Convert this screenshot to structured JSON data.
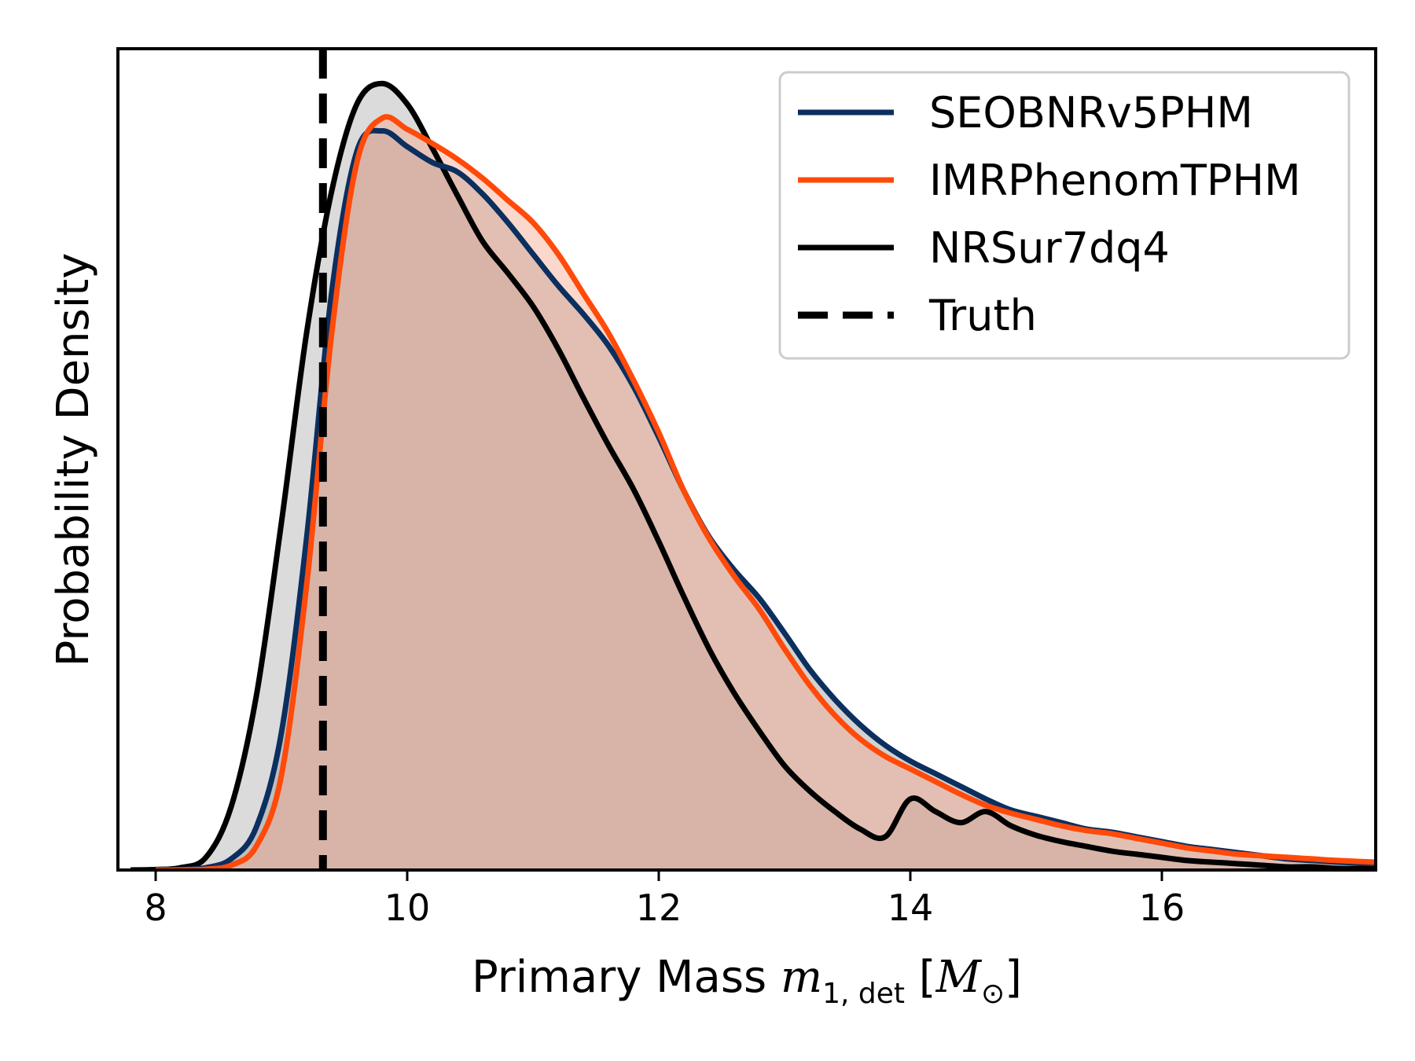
{
  "chart_data": {
    "type": "area",
    "xlabel": "Primary Mass m_{1,det} [M_⊙]",
    "ylabel": "Probability Density",
    "xlim": [
      7.7,
      17.7
    ],
    "ylim": [
      0,
      0.52
    ],
    "xticks": [
      8,
      10,
      12,
      14,
      16
    ],
    "xtick_labels": [
      "8",
      "10",
      "12",
      "14",
      "16"
    ],
    "yticks": [],
    "grid": false,
    "legend": {
      "position": "top-right",
      "entries": [
        "SEOBNRv5PHM",
        "IMRPhenomTPHM",
        "NRSur7dq4",
        "Truth"
      ]
    },
    "truth": {
      "name": "Truth",
      "x": 9.33,
      "color": "#000000",
      "style": "dashed"
    },
    "series": [
      {
        "name": "SEOBNRv5PHM",
        "color": "#0b2f5f",
        "fill": "#9b9b9b",
        "x": [
          8.0,
          8.2,
          8.4,
          8.6,
          8.8,
          9.0,
          9.2,
          9.4,
          9.6,
          9.8,
          10.0,
          10.2,
          10.4,
          10.6,
          10.8,
          11.0,
          11.2,
          11.4,
          11.6,
          11.8,
          12.0,
          12.2,
          12.4,
          12.6,
          12.8,
          13.0,
          13.2,
          13.4,
          13.6,
          13.8,
          14.0,
          14.2,
          14.4,
          14.6,
          14.8,
          15.0,
          15.2,
          15.4,
          15.6,
          15.8,
          16.0,
          16.2,
          16.4,
          16.6,
          16.8,
          17.0,
          17.2,
          17.4,
          17.7
        ],
        "y": [
          0.0,
          0.0003,
          0.0015,
          0.007,
          0.027,
          0.087,
          0.21,
          0.366,
          0.455,
          0.468,
          0.458,
          0.448,
          0.442,
          0.428,
          0.41,
          0.39,
          0.37,
          0.352,
          0.332,
          0.306,
          0.274,
          0.24,
          0.211,
          0.19,
          0.172,
          0.15,
          0.127,
          0.108,
          0.092,
          0.079,
          0.069,
          0.061,
          0.053,
          0.045,
          0.038,
          0.034,
          0.03,
          0.026,
          0.024,
          0.021,
          0.018,
          0.015,
          0.013,
          0.011,
          0.009,
          0.007,
          0.006,
          0.005,
          0.004
        ]
      },
      {
        "name": "IMRPhenomTPHM",
        "color": "#ff4a0a",
        "fill": "#f6a98c",
        "x": [
          8.0,
          8.2,
          8.4,
          8.6,
          8.8,
          9.0,
          9.2,
          9.4,
          9.6,
          9.8,
          10.0,
          10.2,
          10.4,
          10.6,
          10.8,
          11.0,
          11.2,
          11.4,
          11.6,
          11.8,
          12.0,
          12.2,
          12.4,
          12.6,
          12.8,
          13.0,
          13.2,
          13.4,
          13.6,
          13.8,
          14.0,
          14.2,
          14.4,
          14.6,
          14.8,
          15.0,
          15.2,
          15.4,
          15.6,
          15.8,
          16.0,
          16.2,
          16.4,
          16.6,
          16.8,
          17.0,
          17.2,
          17.4,
          17.7
        ],
        "y": [
          0.0,
          0.0,
          0.0005,
          0.003,
          0.015,
          0.06,
          0.18,
          0.34,
          0.448,
          0.476,
          0.469,
          0.46,
          0.45,
          0.438,
          0.424,
          0.41,
          0.39,
          0.365,
          0.34,
          0.31,
          0.277,
          0.24,
          0.21,
          0.186,
          0.165,
          0.14,
          0.117,
          0.098,
          0.083,
          0.072,
          0.064,
          0.056,
          0.048,
          0.041,
          0.036,
          0.032,
          0.028,
          0.025,
          0.023,
          0.02,
          0.017,
          0.014,
          0.012,
          0.01,
          0.009,
          0.008,
          0.007,
          0.006,
          0.005
        ]
      },
      {
        "name": "NRSur7dq4",
        "color": "#000000",
        "fill": "#b0b0b0",
        "x": [
          7.8,
          8.0,
          8.2,
          8.4,
          8.6,
          8.8,
          9.0,
          9.2,
          9.4,
          9.6,
          9.8,
          10.0,
          10.2,
          10.4,
          10.6,
          10.8,
          11.0,
          11.2,
          11.4,
          11.6,
          11.8,
          12.0,
          12.2,
          12.4,
          12.6,
          12.8,
          13.0,
          13.2,
          13.4,
          13.6,
          13.8,
          14.0,
          14.2,
          14.4,
          14.6,
          14.8,
          15.0,
          15.2,
          15.4,
          15.6,
          15.8,
          16.0,
          16.2,
          16.4,
          16.6,
          16.8,
          17.0,
          17.2,
          17.4,
          17.7
        ],
        "y": [
          0.0,
          0.0003,
          0.0015,
          0.008,
          0.04,
          0.11,
          0.22,
          0.34,
          0.43,
          0.485,
          0.498,
          0.485,
          0.457,
          0.427,
          0.398,
          0.378,
          0.357,
          0.33,
          0.299,
          0.269,
          0.241,
          0.208,
          0.173,
          0.14,
          0.112,
          0.088,
          0.066,
          0.05,
          0.037,
          0.026,
          0.021,
          0.045,
          0.037,
          0.03,
          0.037,
          0.028,
          0.022,
          0.018,
          0.015,
          0.012,
          0.01,
          0.008,
          0.006,
          0.005,
          0.004,
          0.003,
          0.002,
          0.002,
          0.001,
          0.001
        ]
      }
    ]
  }
}
